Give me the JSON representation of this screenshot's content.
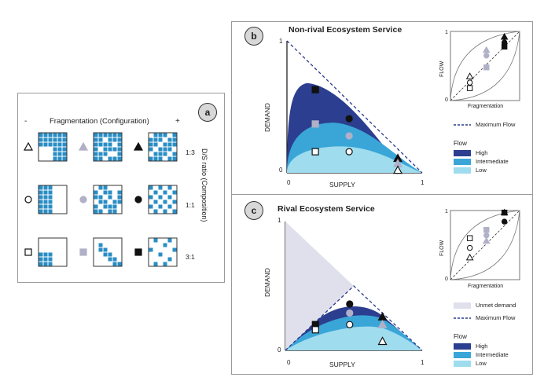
{
  "panel_a": {
    "badge": "a",
    "minus": "-",
    "plus": "+",
    "title": "Fragmentation (Configuration)",
    "side_label": "D/S ratio (Composition)",
    "ratios": [
      "1:3",
      "1:1",
      "3:1"
    ]
  },
  "panel_b": {
    "badge": "b",
    "title": "Non-rival Ecosystem Service",
    "ylabel": "DEMAND",
    "xlabel": "SUPPLY",
    "x_ticks": [
      "0",
      "1"
    ],
    "y_ticks": [
      "0",
      "1"
    ],
    "inset": {
      "ylabel": "FLOW",
      "xlabel": "Fragmentation",
      "y1": "1",
      "y0": "0"
    },
    "legend": {
      "max_flow": "Maximum Flow",
      "flow_title": "Flow",
      "items": [
        "High",
        "Intermediate",
        "Low"
      ]
    }
  },
  "panel_c": {
    "badge": "c",
    "title": "Rival Ecosystem Service",
    "ylabel": "DEMAND",
    "xlabel": "SUPPLY",
    "x_ticks": [
      "0",
      "1"
    ],
    "y_ticks": [
      "0",
      "1"
    ],
    "inset": {
      "ylabel": "FLOW",
      "xlabel": "Fragmentation",
      "y1": "1",
      "y0": "0"
    },
    "legend": {
      "unmet": "Unmet demand",
      "max_flow": "Maximum Flow",
      "flow_title": "Flow",
      "items": [
        "High",
        "Intermediate",
        "Low"
      ]
    }
  },
  "colors": {
    "high": "#2c3e8f",
    "intermediate": "#3aa6d8",
    "low": "#9fdcee",
    "cell": "#2a8ec4",
    "unmet": "#e0e0ec",
    "max_line": "#2a3a8c",
    "grey_marker": "#b0b0c8"
  }
}
